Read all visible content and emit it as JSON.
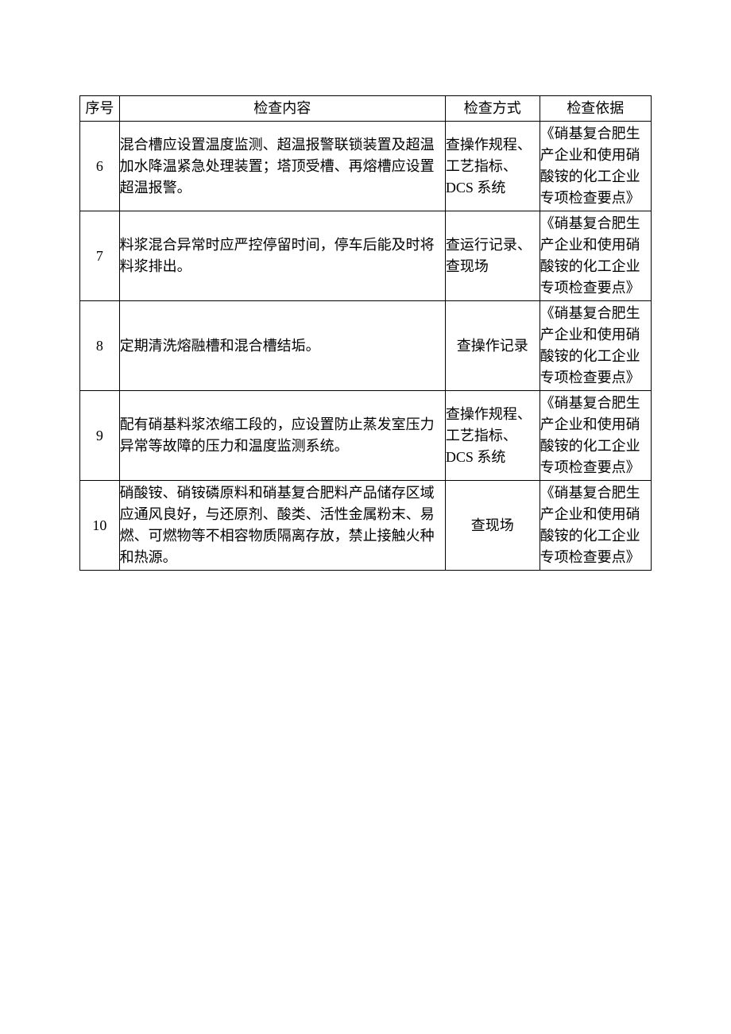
{
  "table": {
    "headers": {
      "seq": "序号",
      "content": "检查内容",
      "method": "检查方式",
      "basis": "检查依据"
    },
    "rows": [
      {
        "seq": "6",
        "content": "混合槽应设置温度监测、超温报警联锁装置及超温加水降温紧急处理装置；塔顶受槽、再熔槽应设置超温报警。",
        "method": "查操作规程、工艺指标、DCS 系统",
        "method_centered": false,
        "basis": "《硝基复合肥生产企业和使用硝酸铵的化工企业专项检查要点》"
      },
      {
        "seq": "7",
        "content": "料浆混合异常时应严控停留时间，停车后能及时将料浆排出。",
        "method": "查运行记录、查现场",
        "method_centered": false,
        "basis": "《硝基复合肥生产企业和使用硝酸铵的化工企业专项检查要点》"
      },
      {
        "seq": "8",
        "content": "定期清洗熔融槽和混合槽结垢。",
        "method": "查操作记录",
        "method_centered": true,
        "basis": "《硝基复合肥生产企业和使用硝酸铵的化工企业专项检查要点》"
      },
      {
        "seq": "9",
        "content": "配有硝基料浆浓缩工段的，应设置防止蒸发室压力异常等故障的压力和温度监测系统。",
        "method": "查操作规程、工艺指标、DCS 系统",
        "method_centered": false,
        "basis": "《硝基复合肥生产企业和使用硝酸铵的化工企业专项检查要点》"
      },
      {
        "seq": "10",
        "content": "硝酸铵、硝铵磷原料和硝基复合肥料产品储存区域应通风良好，与还原剂、酸类、活性金属粉末、易燃、可燃物等不相容物质隔离存放，禁止接触火种和热源。",
        "method": "查现场",
        "method_centered": true,
        "basis": "《硝基复合肥生产企业和使用硝酸铵的化工企业专项检查要点》"
      }
    ],
    "colors": {
      "border": "#000000",
      "background": "#ffffff",
      "text": "#000000"
    },
    "fontsize": 18
  }
}
